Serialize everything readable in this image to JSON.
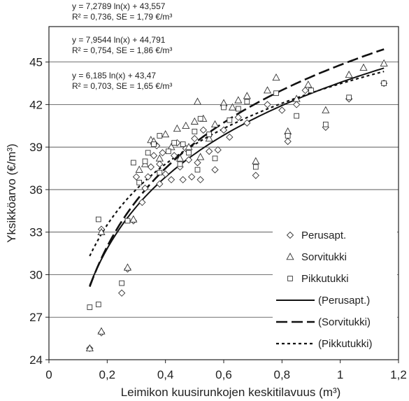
{
  "chart_data": {
    "type": "scatter",
    "xlabel": "Leimikon kuusirunkojen keskitilavuus (m³)",
    "ylabel": "Yksikköarvo (€/m³)",
    "xlim": [
      0,
      1.2
    ],
    "ylim": [
      24,
      47.5
    ],
    "xticks": [
      "0",
      "0,2",
      "0,4",
      "0,6",
      "0,8",
      "1",
      "1,2"
    ],
    "yticks": [
      "24",
      "27",
      "30",
      "33",
      "36",
      "39",
      "42",
      "45"
    ],
    "grid": "horizontal",
    "legend_position": "bottom-right",
    "equations": [
      {
        "line1": "y = 7,2789 ln(x) + 43,557",
        "line2": "R² = 0,736, SE = 1,79 €/m³"
      },
      {
        "line1": "y = 7,9544 ln(x) + 44,791",
        "line2": "R² = 0,754, SE = 1,86 €/m³"
      },
      {
        "line1": "y = 6,185 ln(x) + 43,47",
        "line2": "R² = 0,703, SE = 1,65 €/m³"
      }
    ],
    "series": [
      {
        "name": "Perusapt.",
        "marker": "diamond",
        "points": [
          [
            0.14,
            24.8
          ],
          [
            0.18,
            25.9
          ],
          [
            0.18,
            33.2
          ],
          [
            0.25,
            28.7
          ],
          [
            0.27,
            30.4
          ],
          [
            0.29,
            33.8
          ],
          [
            0.3,
            36.9
          ],
          [
            0.32,
            35.1
          ],
          [
            0.33,
            36.1
          ],
          [
            0.34,
            36.9
          ],
          [
            0.35,
            37.6
          ],
          [
            0.36,
            38.4
          ],
          [
            0.37,
            39.1
          ],
          [
            0.38,
            37.8
          ],
          [
            0.38,
            36.4
          ],
          [
            0.39,
            38.6
          ],
          [
            0.4,
            37.1
          ],
          [
            0.42,
            36.7
          ],
          [
            0.43,
            38.4
          ],
          [
            0.44,
            39.3
          ],
          [
            0.45,
            37.6
          ],
          [
            0.46,
            36.7
          ],
          [
            0.47,
            38.9
          ],
          [
            0.48,
            38.1
          ],
          [
            0.49,
            36.9
          ],
          [
            0.5,
            39.6
          ],
          [
            0.51,
            37.9
          ],
          [
            0.52,
            36.7
          ],
          [
            0.53,
            40.2
          ],
          [
            0.55,
            38.7
          ],
          [
            0.57,
            37.4
          ],
          [
            0.58,
            38.8
          ],
          [
            0.6,
            40.2
          ],
          [
            0.62,
            39.7
          ],
          [
            0.65,
            41.1
          ],
          [
            0.68,
            40.7
          ],
          [
            0.71,
            37.0
          ],
          [
            0.75,
            42.0
          ],
          [
            0.8,
            41.6
          ],
          [
            0.82,
            39.4
          ],
          [
            0.85,
            42.0
          ],
          [
            0.88,
            43.0
          ],
          [
            0.95,
            40.4
          ],
          [
            1.03,
            42.4
          ],
          [
            1.15,
            43.5
          ]
        ]
      },
      {
        "name": "Sorvitukki",
        "marker": "triangle",
        "points": [
          [
            0.14,
            24.8
          ],
          [
            0.18,
            26.0
          ],
          [
            0.18,
            33.0
          ],
          [
            0.27,
            30.5
          ],
          [
            0.29,
            33.9
          ],
          [
            0.31,
            37.4
          ],
          [
            0.33,
            37.8
          ],
          [
            0.35,
            39.5
          ],
          [
            0.36,
            39.4
          ],
          [
            0.38,
            38.2
          ],
          [
            0.4,
            39.9
          ],
          [
            0.42,
            39.0
          ],
          [
            0.44,
            40.3
          ],
          [
            0.45,
            38.2
          ],
          [
            0.47,
            40.5
          ],
          [
            0.48,
            39.0
          ],
          [
            0.5,
            40.8
          ],
          [
            0.51,
            42.2
          ],
          [
            0.52,
            38.3
          ],
          [
            0.53,
            41.0
          ],
          [
            0.55,
            39.6
          ],
          [
            0.57,
            40.6
          ],
          [
            0.6,
            42.1
          ],
          [
            0.63,
            41.8
          ],
          [
            0.65,
            42.3
          ],
          [
            0.68,
            42.6
          ],
          [
            0.71,
            38.0
          ],
          [
            0.75,
            43.0
          ],
          [
            0.78,
            43.9
          ],
          [
            0.82,
            40.1
          ],
          [
            0.85,
            42.4
          ],
          [
            0.89,
            43.4
          ],
          [
            0.95,
            41.6
          ],
          [
            1.03,
            44.1
          ],
          [
            1.08,
            44.6
          ],
          [
            1.15,
            44.9
          ]
        ]
      },
      {
        "name": "Pikkutukki",
        "marker": "square",
        "points": [
          [
            0.14,
            27.7
          ],
          [
            0.17,
            27.9
          ],
          [
            0.17,
            33.9
          ],
          [
            0.25,
            29.4
          ],
          [
            0.27,
            33.8
          ],
          [
            0.29,
            37.9
          ],
          [
            0.31,
            36.5
          ],
          [
            0.33,
            38.0
          ],
          [
            0.34,
            38.6
          ],
          [
            0.36,
            39.2
          ],
          [
            0.38,
            37.2
          ],
          [
            0.38,
            39.8
          ],
          [
            0.41,
            38.7
          ],
          [
            0.43,
            39.3
          ],
          [
            0.45,
            37.8
          ],
          [
            0.46,
            39.2
          ],
          [
            0.48,
            38.6
          ],
          [
            0.5,
            40.1
          ],
          [
            0.51,
            37.4
          ],
          [
            0.52,
            41.0
          ],
          [
            0.55,
            39.9
          ],
          [
            0.57,
            38.2
          ],
          [
            0.6,
            41.8
          ],
          [
            0.62,
            40.9
          ],
          [
            0.65,
            41.7
          ],
          [
            0.68,
            42.2
          ],
          [
            0.71,
            37.6
          ],
          [
            0.78,
            42.8
          ],
          [
            0.82,
            39.8
          ],
          [
            0.85,
            41.2
          ],
          [
            0.9,
            43.0
          ],
          [
            0.95,
            40.6
          ],
          [
            1.03,
            42.5
          ],
          [
            1.15,
            43.5
          ]
        ]
      },
      {
        "name": "(Perusapt.)",
        "type": "trendline",
        "style": "solid",
        "a": 7.2789,
        "b": 43.557,
        "x_range": [
          0.14,
          1.15
        ]
      },
      {
        "name": "(Sorvitukki)",
        "type": "trendline",
        "style": "long-dash",
        "a": 7.9544,
        "b": 44.791,
        "x_range": [
          0.14,
          1.15
        ]
      },
      {
        "name": "(Pikkutukki)",
        "type": "trendline",
        "style": "dotted",
        "a": 6.185,
        "b": 43.47,
        "x_range": [
          0.14,
          1.15
        ]
      }
    ]
  }
}
